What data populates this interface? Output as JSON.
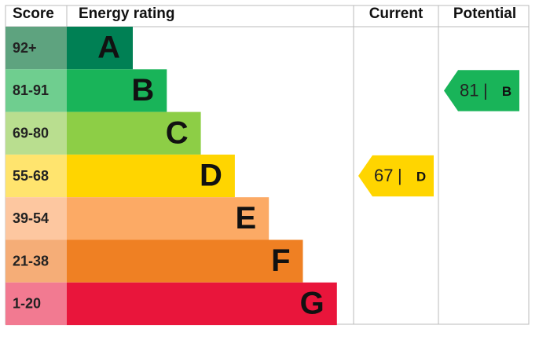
{
  "header": {
    "score": "Score",
    "rating": "Energy rating",
    "current": "Current",
    "potential": "Potential"
  },
  "bands": [
    {
      "score": "92+",
      "letter": "A"
    },
    {
      "score": "81-91",
      "letter": "B"
    },
    {
      "score": "69-80",
      "letter": "C"
    },
    {
      "score": "55-68",
      "letter": "D"
    },
    {
      "score": "39-54",
      "letter": "E"
    },
    {
      "score": "21-38",
      "letter": "F"
    },
    {
      "score": "1-20",
      "letter": "G"
    }
  ],
  "separator": "|",
  "current": {
    "value": 67,
    "letter": "D"
  },
  "potential": {
    "value": 81,
    "letter": "B"
  }
}
